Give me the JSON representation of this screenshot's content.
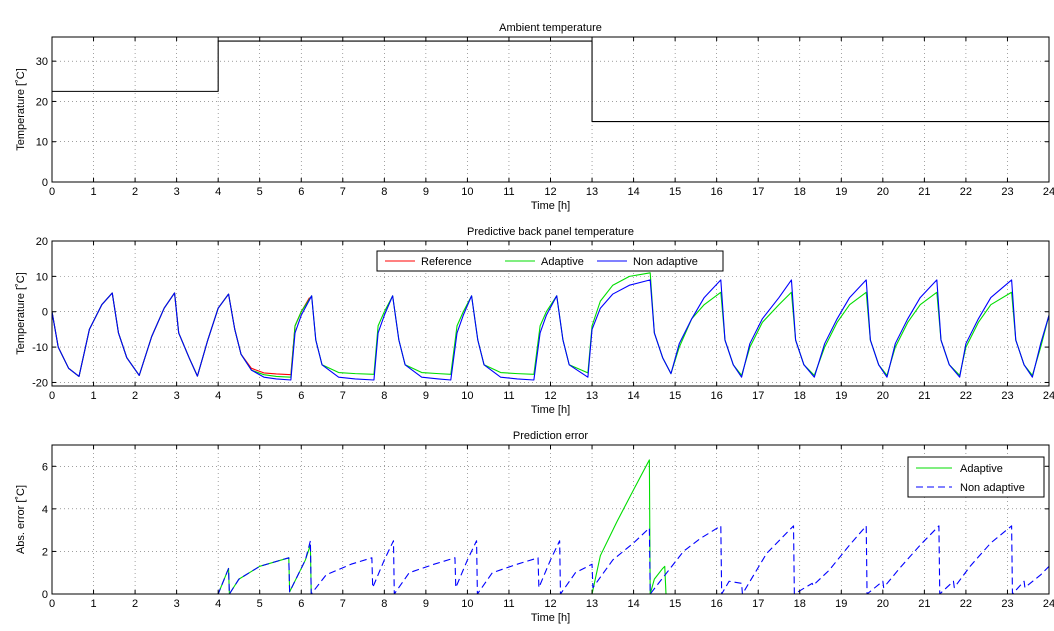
{
  "chart_data": [
    {
      "type": "line",
      "title": "Ambient temperature",
      "xlabel": "Time [h]",
      "ylabel": "Temperature [˚C]",
      "xlim": [
        0,
        24
      ],
      "ylim": [
        0,
        36
      ],
      "xticks": [
        0,
        1,
        2,
        3,
        4,
        5,
        6,
        7,
        8,
        9,
        10,
        11,
        12,
        13,
        14,
        15,
        16,
        17,
        18,
        19,
        20,
        21,
        22,
        23,
        24
      ],
      "yticks": [
        0,
        10,
        20,
        30
      ],
      "grid": true,
      "series": [
        {
          "name": "",
          "color": "#000000",
          "dash": false,
          "x": [
            0,
            4,
            4,
            13,
            13,
            24
          ],
          "y": [
            22.5,
            22.5,
            35,
            35,
            15,
            15
          ]
        }
      ]
    },
    {
      "type": "line",
      "title": "Predictive back panel temperature",
      "xlabel": "Time [h]",
      "ylabel": "Temperature [˚C]",
      "xlim": [
        0,
        24
      ],
      "ylim": [
        -21,
        20
      ],
      "xticks": [
        0,
        1,
        2,
        3,
        4,
        5,
        6,
        7,
        8,
        9,
        10,
        11,
        12,
        13,
        14,
        15,
        16,
        17,
        18,
        19,
        20,
        21,
        22,
        23,
        24
      ],
      "yticks": [
        -20,
        -10,
        0,
        10,
        20
      ],
      "grid": true,
      "legend": "top-center",
      "series": [
        {
          "name": "Reference",
          "color": "#ff0000",
          "dash": false,
          "x": [
            0,
            0.15,
            0.4,
            0.65,
            0.9,
            1.2,
            1.45,
            1.6,
            1.8,
            2.1,
            2.4,
            2.7,
            2.95,
            3.05,
            3.3,
            3.5,
            3.75,
            4.0,
            4.25,
            4.4,
            4.55,
            4.8,
            5.1,
            5.4,
            5.75,
            5.85,
            6.0,
            6.2
          ],
          "y": [
            0,
            -10,
            -16,
            -18.3,
            -5,
            2,
            5.3,
            -6,
            -13,
            -18,
            -7,
            1,
            5.3,
            -6,
            -13,
            -18.2,
            -8,
            1,
            5,
            -5,
            -12,
            -16,
            -17.3,
            -17.6,
            -17.8,
            -4,
            0,
            4
          ]
        },
        {
          "name": "Adaptive",
          "color": "#00dd00",
          "dash": false,
          "x": [
            0,
            0.15,
            0.4,
            0.65,
            0.9,
            1.2,
            1.45,
            1.6,
            1.8,
            2.1,
            2.4,
            2.7,
            2.95,
            3.05,
            3.3,
            3.5,
            3.75,
            4.0,
            4.25,
            4.4,
            4.55,
            4.8,
            5.1,
            5.4,
            5.75,
            5.85,
            6.0,
            6.25,
            6.35,
            6.5,
            6.9,
            7.3,
            7.75,
            7.85,
            8.0,
            8.2,
            8.35,
            8.5,
            8.9,
            9.3,
            9.6,
            9.75,
            9.9,
            10.1,
            10.25,
            10.4,
            10.8,
            11.2,
            11.6,
            11.75,
            11.9,
            12.15,
            12.3,
            12.45,
            12.9,
            13.0,
            13.2,
            13.5,
            13.9,
            14.4,
            14.5,
            14.7,
            14.9,
            15.1,
            15.4,
            15.7,
            16.1,
            16.2,
            16.4,
            16.6,
            16.8,
            17.1,
            17.5,
            17.8,
            17.9,
            18.1,
            18.35,
            18.6,
            18.9,
            19.2,
            19.6,
            19.7,
            19.9,
            20.1,
            20.3,
            20.6,
            20.9,
            21.3,
            21.4,
            21.6,
            21.85,
            22.0,
            22.3,
            22.6,
            23.1,
            23.2,
            23.4,
            23.6,
            23.8,
            24.0
          ],
          "y": [
            0,
            -10,
            -16,
            -18.3,
            -5,
            2,
            5.3,
            -6,
            -13,
            -18,
            -7,
            1,
            5.3,
            -6,
            -13,
            -18.2,
            -8,
            1,
            5,
            -5,
            -12,
            -16.5,
            -17.8,
            -18.3,
            -18.5,
            -4,
            0,
            4.5,
            -8,
            -15,
            -17.2,
            -17.5,
            -17.7,
            -4,
            0,
            4.5,
            -8,
            -15,
            -17.2,
            -17.5,
            -17.7,
            -4,
            0,
            4.5,
            -8,
            -15,
            -17.2,
            -17.5,
            -17.7,
            -4,
            0,
            4.5,
            -8,
            -15,
            -17.3,
            -4,
            3,
            7.5,
            10,
            11,
            -6,
            -13,
            -17.5,
            -10,
            -2,
            2,
            5.5,
            -8,
            -15,
            -18,
            -10,
            -3,
            2,
            5.5,
            -8,
            -15,
            -18,
            -10,
            -3,
            2,
            5.5,
            -8,
            -15,
            -18,
            -10,
            -3,
            2,
            5.5,
            -8,
            -15,
            -18,
            -10,
            -3,
            2,
            5.5,
            -8,
            -15,
            -18,
            -10,
            -1
          ]
        },
        {
          "name": "Non adaptive",
          "color": "#0000ff",
          "dash": false,
          "x": [
            0,
            0.15,
            0.4,
            0.65,
            0.9,
            1.2,
            1.45,
            1.6,
            1.8,
            2.1,
            2.4,
            2.7,
            2.95,
            3.05,
            3.3,
            3.5,
            3.75,
            4.0,
            4.25,
            4.4,
            4.55,
            4.8,
            5.1,
            5.4,
            5.75,
            5.85,
            6.0,
            6.25,
            6.35,
            6.5,
            6.9,
            7.3,
            7.75,
            7.85,
            8.0,
            8.2,
            8.35,
            8.5,
            8.9,
            9.3,
            9.6,
            9.75,
            9.9,
            10.1,
            10.25,
            10.4,
            10.8,
            11.2,
            11.6,
            11.75,
            11.9,
            12.15,
            12.3,
            12.45,
            12.9,
            13.0,
            13.2,
            13.5,
            13.9,
            14.4,
            14.5,
            14.7,
            14.9,
            15.1,
            15.4,
            15.7,
            16.1,
            16.2,
            16.4,
            16.6,
            16.8,
            17.1,
            17.5,
            17.8,
            17.9,
            18.1,
            18.35,
            18.6,
            18.9,
            19.2,
            19.6,
            19.7,
            19.9,
            20.1,
            20.3,
            20.6,
            20.9,
            21.3,
            21.4,
            21.6,
            21.85,
            22.0,
            22.3,
            22.6,
            23.1,
            23.2,
            23.4,
            23.6,
            23.8,
            24.0
          ],
          "y": [
            0,
            -10,
            -16,
            -18.3,
            -5,
            2,
            5.3,
            -6,
            -13,
            -18,
            -7,
            1,
            5.3,
            -6,
            -13,
            -18.2,
            -8,
            1,
            5,
            -5,
            -12,
            -16.5,
            -18.5,
            -19,
            -19.3,
            -6,
            -1,
            4.5,
            -8,
            -15,
            -18.5,
            -19,
            -19.3,
            -6,
            -1,
            4.5,
            -8,
            -15,
            -18.5,
            -19,
            -19.3,
            -6,
            -1,
            4.5,
            -8,
            -15,
            -18.5,
            -19,
            -19.3,
            -6,
            -1,
            4.5,
            -8,
            -15,
            -18.5,
            -5,
            1,
            5,
            7.5,
            9,
            -6,
            -13,
            -17.5,
            -9,
            -2,
            4,
            9,
            -8,
            -15,
            -18.5,
            -9,
            -2,
            4,
            9,
            -8,
            -15,
            -18.5,
            -9,
            -2,
            4,
            9,
            -8,
            -15,
            -18.5,
            -9,
            -2,
            4,
            9,
            -8,
            -15,
            -18.5,
            -9,
            -2,
            4,
            9,
            -8,
            -15,
            -18.5,
            -9,
            -1
          ]
        }
      ]
    },
    {
      "type": "line",
      "title": "Prediction error",
      "xlabel": "Time [h]",
      "ylabel": "Abs. error [˚C]",
      "xlim": [
        0,
        24
      ],
      "ylim": [
        0,
        7
      ],
      "xticks": [
        0,
        1,
        2,
        3,
        4,
        5,
        6,
        7,
        8,
        9,
        10,
        11,
        12,
        13,
        14,
        15,
        16,
        17,
        18,
        19,
        20,
        21,
        22,
        23,
        24
      ],
      "yticks": [
        0,
        2,
        4,
        6
      ],
      "grid": true,
      "legend": "top-right",
      "series": [
        {
          "name": "Adaptive",
          "color": "#00dd00",
          "dash": false,
          "x": [
            0,
            4.0,
            4.25,
            4.27,
            4.5,
            5.0,
            5.7,
            5.72,
            6.1,
            6.22,
            6.24,
            13.0,
            13.2,
            13.6,
            14.0,
            14.38,
            14.4,
            14.5,
            14.7,
            14.75,
            14.78,
            24.0
          ],
          "y": [
            0,
            0,
            1.2,
            0,
            0.7,
            1.3,
            1.7,
            0.1,
            1.6,
            2.3,
            0,
            0,
            1.8,
            3.4,
            4.9,
            6.3,
            0,
            0.7,
            1.2,
            1.3,
            0,
            0
          ]
        },
        {
          "name": "Non adaptive",
          "color": "#0000ff",
          "dash": true,
          "x": [
            0,
            4.0,
            4.25,
            4.27,
            4.5,
            5.0,
            5.7,
            5.72,
            6.1,
            6.22,
            6.24,
            6.6,
            7.2,
            7.7,
            7.72,
            8.0,
            8.22,
            8.24,
            8.6,
            9.2,
            9.7,
            9.72,
            10.0,
            10.22,
            10.24,
            10.6,
            11.2,
            11.7,
            11.72,
            12.0,
            12.22,
            12.24,
            12.6,
            13.0,
            13.02,
            13.5,
            14.0,
            14.38,
            14.4,
            14.8,
            15.2,
            15.6,
            16.1,
            16.12,
            16.3,
            16.6,
            16.62,
            17.2,
            17.85,
            17.87,
            18.3,
            18.32,
            18.7,
            19.2,
            19.6,
            19.62,
            20.0,
            20.02,
            20.4,
            20.9,
            21.35,
            21.37,
            21.7,
            21.72,
            22.1,
            22.6,
            23.1,
            23.12,
            23.4,
            23.42,
            23.8,
            24.0
          ],
          "y": [
            0,
            0,
            1.2,
            0,
            0.7,
            1.3,
            1.7,
            0.1,
            1.6,
            2.5,
            0,
            0.9,
            1.4,
            1.7,
            0.3,
            1.6,
            2.5,
            0,
            1.0,
            1.4,
            1.7,
            0.3,
            1.6,
            2.5,
            0,
            1.0,
            1.4,
            1.7,
            0.3,
            1.6,
            2.5,
            0,
            1.0,
            1.4,
            0.3,
            1.6,
            2.4,
            3.1,
            0,
            1.0,
            2.0,
            2.6,
            3.2,
            0,
            0.6,
            0.5,
            0,
            1.9,
            3.2,
            0,
            0.5,
            0.4,
            1.1,
            2.3,
            3.2,
            0,
            0.6,
            0.3,
            1.2,
            2.3,
            3.2,
            0,
            0.6,
            0.3,
            1.3,
            2.4,
            3.2,
            0,
            0.6,
            0.3,
            0.9,
            1.3
          ]
        }
      ]
    }
  ]
}
